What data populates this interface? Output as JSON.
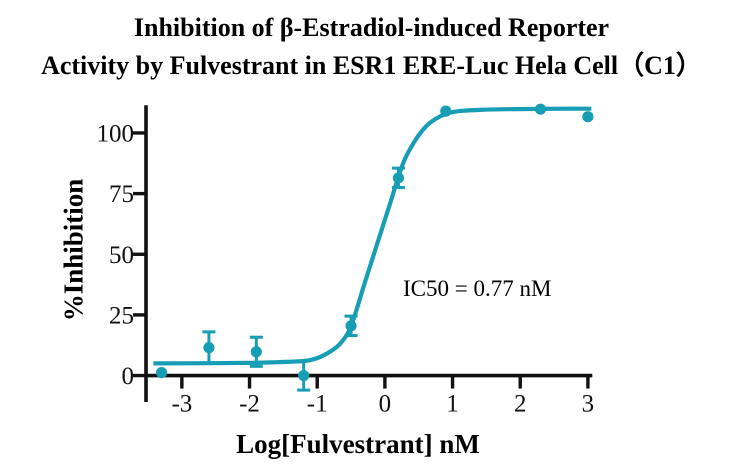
{
  "title": {
    "line1": "Inhibition of β-Estradiol-induced Reporter",
    "line2": "Activity by Fulvestrant in ESR1 ERE-Luc Hela Cell（C1）"
  },
  "chart_data": {
    "type": "scatter",
    "title": "Inhibition of β-Estradiol-induced Reporter Activity by Fulvestrant in ESR1 ERE-Luc Hela Cell（C1）",
    "xlabel": "Log[Fulvestrant] nM",
    "ylabel": "%Inhibition",
    "annotation": "IC50 = 0.77 nM",
    "ic50_nM": 0.77,
    "x_ticks": [
      -3,
      -2,
      -1,
      0,
      1,
      2,
      3
    ],
    "y_ticks": [
      0,
      25,
      50,
      75,
      100
    ],
    "xlim": [
      -3.53,
      3.065
    ],
    "ylim": [
      -10.9,
      110.7
    ],
    "grid": false,
    "legend": "none",
    "series": [
      {
        "name": "Fulvestrant",
        "points": [
          {
            "x": -3.3,
            "y": 1.2,
            "err": 0
          },
          {
            "x": -2.6,
            "y": 11.5,
            "err": 6.5
          },
          {
            "x": -1.9,
            "y": 9.8,
            "err": 6
          },
          {
            "x": -1.2,
            "y": 0,
            "err": 6
          },
          {
            "x": -0.5,
            "y": 20.5,
            "err": 4
          },
          {
            "x": 0.2,
            "y": 81.5,
            "err": 4
          },
          {
            "x": 0.9,
            "y": 109,
            "err": 0
          },
          {
            "x": 2.3,
            "y": 109.8,
            "err": 0
          },
          {
            "x": 3.0,
            "y": 106.7,
            "err": 0
          }
        ]
      }
    ],
    "fit_curve": {
      "model": "four-parameter logistic (dose-response)",
      "bottom": 5,
      "top": 110,
      "log_ic50": -0.11,
      "points": [
        [
          -3.42,
          5.0
        ],
        [
          -2.6,
          5.1
        ],
        [
          -2.0,
          5.2
        ],
        [
          -1.6,
          5.5
        ],
        [
          -1.2,
          6.0
        ],
        [
          -1.0,
          7.2
        ],
        [
          -0.8,
          10.0
        ],
        [
          -0.65,
          13.5
        ],
        [
          -0.5,
          20.4
        ],
        [
          -0.3,
          38
        ],
        [
          -0.1,
          55.5
        ],
        [
          0.1,
          73
        ],
        [
          0.2,
          82
        ],
        [
          0.3,
          89.5
        ],
        [
          0.45,
          97
        ],
        [
          0.6,
          102.5
        ],
        [
          0.75,
          105.8
        ],
        [
          0.9,
          107.8
        ],
        [
          1.1,
          109.0
        ],
        [
          1.4,
          109.5
        ],
        [
          1.8,
          109.8
        ],
        [
          2.3,
          109.9
        ],
        [
          2.7,
          110.0
        ],
        [
          3.05,
          110.0
        ]
      ]
    },
    "colors": {
      "series": "#189EB4",
      "axis": "#111111"
    }
  }
}
